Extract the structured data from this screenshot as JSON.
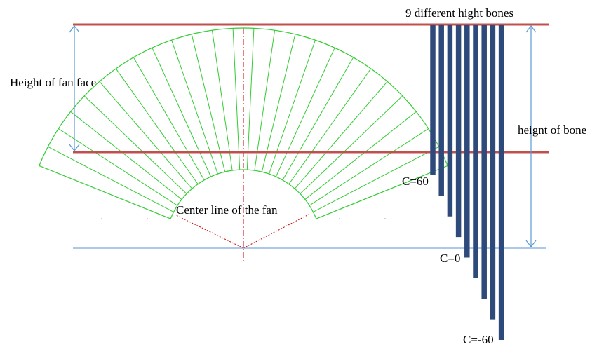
{
  "labels": {
    "bones_title": "9  different hight bones",
    "fan_face_height": "Height of fan face",
    "bone_height": "heignt of bone",
    "fan_center_line": "Center line of the fan",
    "c_top": "C=60",
    "c_mid": "C=0",
    "c_bottom": "C=-60"
  },
  "bones": {
    "count": 9
  },
  "fan": {
    "segment_count": 25
  },
  "colors": {
    "fan_stroke": "#33cc33",
    "reference_line": "#c0504d",
    "bone_fill": "#2e4a7a",
    "dimension_arrow": "#5b9bd5",
    "center_dashes": "#cc0000",
    "base_line": "#7da7d9"
  }
}
